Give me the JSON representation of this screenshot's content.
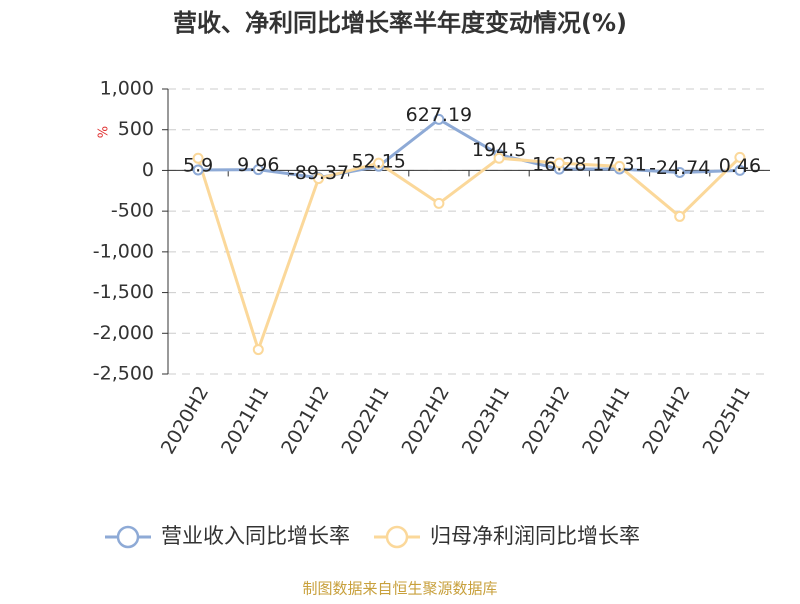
{
  "chart_data": {
    "type": "line",
    "title": "营收、净利同比增长率半年度变动情况(%)",
    "y_label": "%",
    "categories": [
      "2020H2",
      "2021H1",
      "2021H2",
      "2022H1",
      "2022H2",
      "2023H1",
      "2023H2",
      "2024H1",
      "2024H2",
      "2025H1"
    ],
    "series": [
      {
        "name": "营业收入同比增长率",
        "color": "#8eaad6",
        "values": [
          5.9,
          9.96,
          -89.37,
          52.15,
          627.19,
          194.5,
          16.28,
          17.31,
          -24.74,
          0.46
        ],
        "show_labels": true
      },
      {
        "name": "归母净利润同比增长率",
        "color": "#fbd89a",
        "values": [
          150,
          -2200,
          -100,
          90,
          -405,
          150,
          90,
          50,
          -565,
          160
        ],
        "show_labels": false
      }
    ],
    "ylim": [
      -2500,
      1000
    ],
    "yticks": [
      {
        "value": -2500,
        "label": "-2,500"
      },
      {
        "value": -2000,
        "label": "-2,000"
      },
      {
        "value": -1500,
        "label": "-1,500"
      },
      {
        "value": -1000,
        "label": "-1,000"
      },
      -500,
      0,
      500,
      {
        "value": 1000,
        "label": "1,000"
      }
    ],
    "grid": true,
    "legend": "bottom",
    "source": "制图数据来自恒生聚源数据库"
  }
}
